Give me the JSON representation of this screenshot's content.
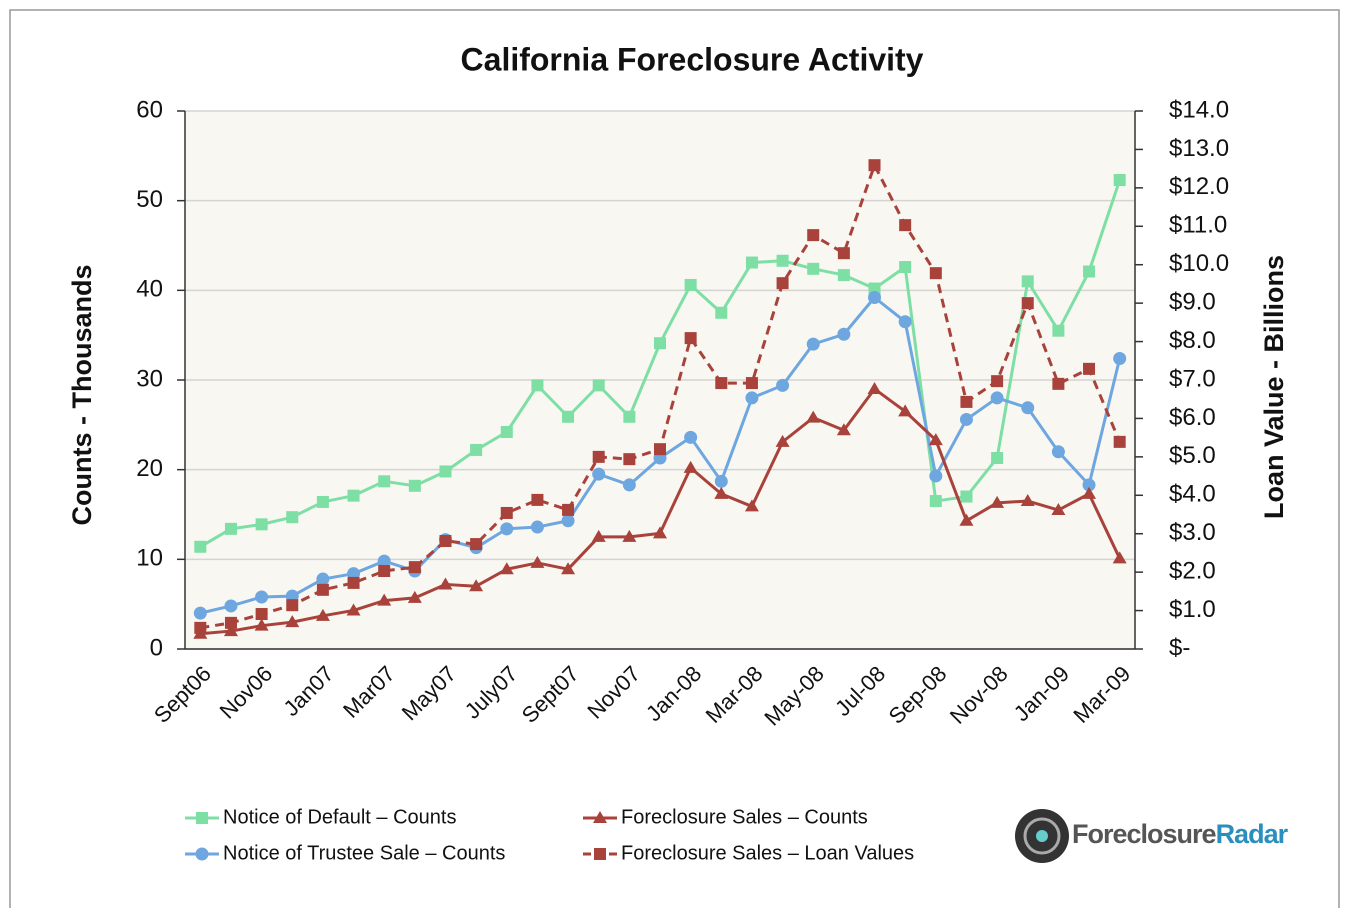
{
  "chart_data": {
    "type": "line",
    "title": "California Foreclosure Activity",
    "ylabel": "Counts - Thousands",
    "y2label": "Loan Value - Billions",
    "categories": [
      "Sept06",
      null,
      "Nov06",
      null,
      "Jan07",
      null,
      "Mar07",
      null,
      "May07",
      null,
      "July07",
      null,
      "Sept07",
      null,
      "Nov07",
      null,
      "Jan-08",
      null,
      "Mar-08",
      null,
      "May-08",
      null,
      "Jul-08",
      null,
      "Sep-08",
      null,
      "Nov-08",
      null,
      "Jan-09",
      null,
      "Mar-09"
    ],
    "ylim": [
      0,
      60
    ],
    "yticks": [
      0,
      10,
      20,
      30,
      40,
      50,
      60
    ],
    "y2lim": [
      0,
      14
    ],
    "y2ticks": [
      {
        "value": 0,
        "label": "$-"
      },
      {
        "value": 1,
        "label": "$1.0"
      },
      {
        "value": 2,
        "label": "$2.0"
      },
      {
        "value": 3,
        "label": "$3.0"
      },
      {
        "value": 4,
        "label": "$4.0"
      },
      {
        "value": 5,
        "label": "$5.0"
      },
      {
        "value": 6,
        "label": "$6.0"
      },
      {
        "value": 7,
        "label": "$7.0"
      },
      {
        "value": 8,
        "label": "$8.0"
      },
      {
        "value": 9,
        "label": "$9.0"
      },
      {
        "value": 10,
        "label": "$10.0"
      },
      {
        "value": 11,
        "label": "$11.0"
      },
      {
        "value": 12,
        "label": "$12.0"
      },
      {
        "value": 13,
        "label": "$13.0"
      },
      {
        "value": 14,
        "label": "$14.0"
      }
    ],
    "grid": true,
    "series": [
      {
        "name": "Notice of Default – Counts",
        "color": "#7ddfa4",
        "marker": "square",
        "values": [
          11.4,
          13.4,
          13.9,
          14.7,
          16.4,
          17.1,
          18.7,
          18.2,
          19.8,
          22.2,
          24.2,
          29.4,
          25.9,
          29.4,
          25.9,
          34.1,
          40.6,
          37.5,
          43.1,
          43.3,
          42.4,
          41.7,
          40.2,
          42.6,
          16.5,
          17.0,
          21.3,
          41.0,
          35.5,
          42.1,
          52.3
        ]
      },
      {
        "name": "Notice of Trustee Sale – Counts",
        "color": "#6ea6e0",
        "marker": "circle",
        "values": [
          4.0,
          4.8,
          5.8,
          5.9,
          7.8,
          8.4,
          9.8,
          8.7,
          12.2,
          11.3,
          13.4,
          13.6,
          14.3,
          19.5,
          18.3,
          21.3,
          23.6,
          18.7,
          28.0,
          29.4,
          34.0,
          35.1,
          39.2,
          36.5,
          19.3,
          25.6,
          28.0,
          26.9,
          22.0,
          18.3,
          32.4
        ]
      },
      {
        "name": "Foreclosure Sales – Counts",
        "color": "#a8423a",
        "marker": "triangle",
        "values": [
          1.7,
          2.0,
          2.6,
          3.0,
          3.7,
          4.3,
          5.4,
          5.7,
          7.2,
          7.0,
          8.9,
          9.6,
          8.9,
          12.5,
          12.5,
          12.9,
          20.2,
          17.3,
          15.9,
          23.1,
          25.8,
          24.4,
          29.0,
          26.5,
          23.3,
          14.3,
          16.3,
          16.5,
          15.5,
          17.3,
          10.1
        ]
      },
      {
        "name": "Foreclosure Sales – Loan Values",
        "color": "#a8423a",
        "marker": "square",
        "dash": true,
        "axis": "y2",
        "values": [
          0.55,
          0.68,
          0.91,
          1.14,
          1.54,
          1.72,
          2.03,
          2.13,
          2.81,
          2.73,
          3.54,
          3.88,
          3.62,
          5.0,
          4.94,
          5.2,
          8.09,
          6.92,
          6.92,
          9.52,
          10.77,
          10.3,
          12.59,
          11.03,
          9.78,
          6.43,
          6.97,
          9.0,
          6.9,
          7.29,
          5.39
        ]
      }
    ],
    "logo": {
      "part1": "Foreclosure",
      "part2": "Radar"
    }
  }
}
